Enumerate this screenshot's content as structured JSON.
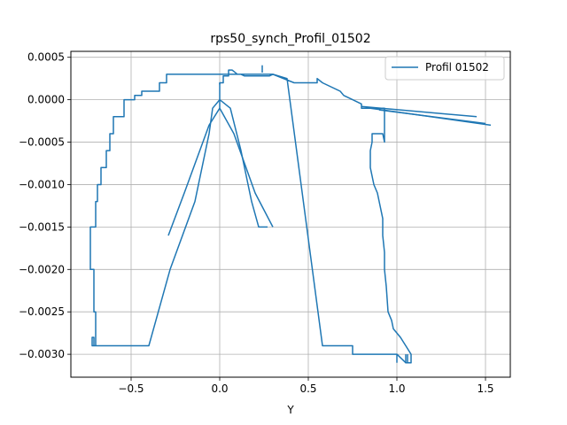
{
  "chart_data": {
    "type": "line",
    "title": "rps50_synch_Profil_01502",
    "xlabel": "Y",
    "ylabel": "",
    "xlim": [
      -0.84,
      1.64
    ],
    "ylim": [
      -0.00327,
      0.00057
    ],
    "xticks": [
      -0.5,
      0.0,
      0.5,
      1.0,
      1.5
    ],
    "xtick_labels": [
      "−0.5",
      "0.0",
      "0.5",
      "1.0",
      "1.5"
    ],
    "yticks": [
      -0.003,
      -0.0025,
      -0.002,
      -0.0015,
      -0.001,
      -0.0005,
      0.0,
      0.0005
    ],
    "ytick_labels": [
      "−0.0030",
      "−0.0025",
      "−0.0020",
      "−0.0015",
      "−0.0010",
      "−0.0005",
      "0.0000",
      "0.0005"
    ],
    "grid": true,
    "legend_position": "top-right",
    "colors": {
      "series": "#1f77b4",
      "grid": "#b0b0b0",
      "axes": "#000000"
    },
    "series": [
      {
        "name": "Profil 01502",
        "x": [
          0.0,
          0.0,
          0.02,
          0.02,
          0.05,
          0.05,
          0.07,
          0.1,
          0.12,
          0.14,
          0.16,
          0.18,
          0.2,
          0.22,
          0.24,
          0.26,
          0.28,
          0.3,
          0.38,
          0.58,
          0.62,
          0.65,
          0.7,
          0.75,
          0.75,
          0.8,
          0.85,
          0.9,
          0.95,
          1.0,
          1.05,
          1.08,
          1.08,
          1.05,
          1.02,
          0.98,
          0.97,
          0.95,
          0.94,
          0.93,
          0.93,
          0.92,
          0.92,
          0.91,
          0.9,
          0.89,
          0.87,
          0.86,
          0.85,
          0.85,
          0.86,
          0.86,
          0.9,
          0.92,
          0.93,
          0.93,
          0.8,
          0.8,
          0.75,
          0.7,
          0.68,
          0.68,
          0.58,
          0.58,
          0.55,
          0.55,
          0.42,
          0.42,
          0.3,
          0.3,
          0.2,
          0.1,
          0.0,
          -0.08,
          -0.08,
          -0.2,
          -0.3,
          -0.3,
          -0.34,
          -0.34,
          -0.44,
          -0.44,
          -0.48,
          -0.48,
          -0.54,
          -0.54,
          -0.6,
          -0.6,
          -0.62,
          -0.62,
          -0.64,
          -0.64,
          -0.67,
          -0.67,
          -0.69,
          -0.69,
          -0.7,
          -0.7,
          -0.73,
          -0.73,
          -0.71,
          -0.71,
          -0.7,
          -0.7,
          -0.71,
          -0.71,
          -0.72,
          -0.72,
          -0.72,
          -0.52,
          -0.4,
          -0.28,
          -0.14,
          -0.06,
          -0.04,
          0.0,
          0.06,
          0.12,
          0.18,
          0.22,
          0.27
        ],
        "y": [
          0.00018,
          0.0002,
          0.0002,
          0.00028,
          0.00028,
          0.00035,
          0.00035,
          0.0003,
          0.0003,
          0.00028,
          0.00028,
          0.00028,
          0.00028,
          0.00028,
          0.00028,
          0.00028,
          0.00028,
          0.0003,
          0.00025,
          -0.0029,
          -0.0029,
          -0.0029,
          -0.0029,
          -0.0029,
          -0.003,
          -0.003,
          -0.003,
          -0.003,
          -0.003,
          -0.003,
          -0.0031,
          -0.0031,
          -0.003,
          -0.0029,
          -0.0028,
          -0.0027,
          -0.0026,
          -0.0025,
          -0.0022,
          -0.002,
          -0.0018,
          -0.0016,
          -0.0014,
          -0.0013,
          -0.0012,
          -0.0011,
          -0.001,
          -0.0009,
          -0.0008,
          -0.0006,
          -0.0005,
          -0.0004,
          -0.0004,
          -0.0004,
          -0.0005,
          -0.0001,
          -0.0001,
          -5e-05,
          0.0,
          5e-05,
          0.0001,
          0.0001,
          0.0002,
          0.0002,
          0.00025,
          0.0002,
          0.0002,
          0.0002,
          0.0003,
          0.0003,
          0.0003,
          0.0003,
          0.0003,
          0.0003,
          0.0003,
          0.0003,
          0.0003,
          0.0002,
          0.0002,
          0.0001,
          0.0001,
          5e-05,
          5e-05,
          0.0,
          0.0,
          -0.0002,
          -0.0002,
          -0.0004,
          -0.0004,
          -0.0006,
          -0.0006,
          -0.0008,
          -0.0008,
          -0.001,
          -0.001,
          -0.0012,
          -0.0012,
          -0.0015,
          -0.0015,
          -0.002,
          -0.002,
          -0.0025,
          -0.0025,
          -0.0029,
          -0.0029,
          -0.0028,
          -0.0028,
          -0.0029,
          -0.0029,
          -0.0029,
          -0.0029,
          -0.002,
          -0.0012,
          -0.0004,
          -0.0001,
          0.0,
          -0.0001,
          -0.0006,
          -0.0012,
          -0.0015,
          -0.0015
        ],
        "extra_segments": [
          {
            "x": [
              0.8,
              1.45
            ],
            "y": [
              -8e-05,
              -0.0002
            ]
          },
          {
            "x": [
              0.85,
              1.53
            ],
            "y": [
              -0.0001,
              -0.0003
            ]
          },
          {
            "x": [
              0.9,
              1.5
            ],
            "y": [
              -0.00012,
              -0.00028
            ]
          },
          {
            "x": [
              0.0,
              -0.06,
              -0.2,
              -0.29
            ],
            "y": [
              -0.0001,
              -0.0003,
              -0.0011,
              -0.0016
            ]
          },
          {
            "x": [
              0.0,
              0.08,
              0.2,
              0.3
            ],
            "y": [
              -0.0001,
              -0.0004,
              -0.0011,
              -0.0015
            ]
          },
          {
            "x": [
              0.24,
              0.24,
              0.24
            ],
            "y": [
              0.00032,
              0.0004,
              0.00032
            ]
          },
          {
            "x": [
              1.0,
              1.0
            ],
            "y": [
              -0.003,
              -0.0031
            ]
          },
          {
            "x": [
              1.05,
              1.05,
              1.06,
              1.06
            ],
            "y": [
              -0.003,
              -0.0031,
              -0.0031,
              -0.003
            ]
          },
          {
            "x": [
              0.0,
              0.0
            ],
            "y": [
              0.0002,
              -0.0001
            ]
          }
        ]
      }
    ]
  }
}
